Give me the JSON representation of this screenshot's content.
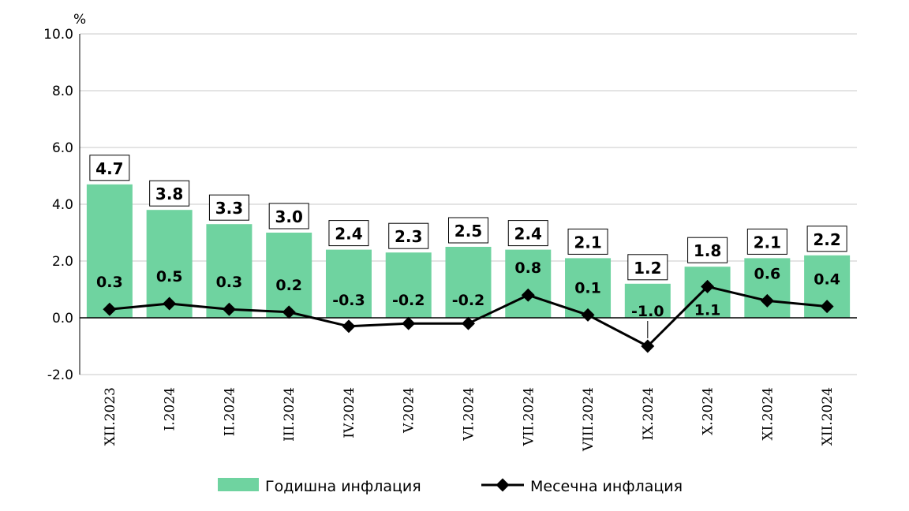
{
  "chart_data": {
    "type": "bar",
    "unit": "%",
    "categories": [
      "XII.2023",
      "I.2024",
      "II.2024",
      "III.2024",
      "IV.2024",
      "V.2024",
      "VI.2024",
      "VII.2024",
      "VIII.2024",
      "IX.2024",
      "X.2024",
      "XI.2024",
      "XII.2024"
    ],
    "series": [
      {
        "name": "Годишна инфлация",
        "type": "bar",
        "color": "#6fd3a0",
        "values": [
          4.7,
          3.8,
          3.3,
          3.0,
          2.4,
          2.3,
          2.5,
          2.4,
          2.1,
          1.2,
          1.8,
          2.1,
          2.2
        ],
        "labels": [
          "4.7",
          "3.8",
          "3.3",
          "3.0",
          "2.4",
          "2.3",
          "2.5",
          "2.4",
          "2.1",
          "1.2",
          "1.8",
          "2.1",
          "2.2"
        ]
      },
      {
        "name": "Месечна инфлация",
        "type": "line",
        "color": "#000000",
        "values": [
          0.3,
          0.5,
          0.3,
          0.2,
          -0.3,
          -0.2,
          -0.2,
          0.8,
          0.1,
          -1.0,
          1.1,
          0.6,
          0.4
        ],
        "labels": [
          "0.3",
          "0.5",
          "0.3",
          "0.2",
          "-0.3",
          "-0.2",
          "-0.2",
          "0.8",
          "0.1",
          "-1.0",
          "1.1",
          "0.6",
          "0.4"
        ]
      }
    ],
    "ylim": [
      -2.0,
      10.0
    ],
    "yticks": [
      -2.0,
      0.0,
      2.0,
      4.0,
      6.0,
      8.0,
      10.0
    ],
    "ytick_labels": [
      "-2.0",
      "0.0",
      "2.0",
      "4.0",
      "6.0",
      "8.0",
      "10.0"
    ],
    "grid": true,
    "legend_position": "bottom"
  }
}
